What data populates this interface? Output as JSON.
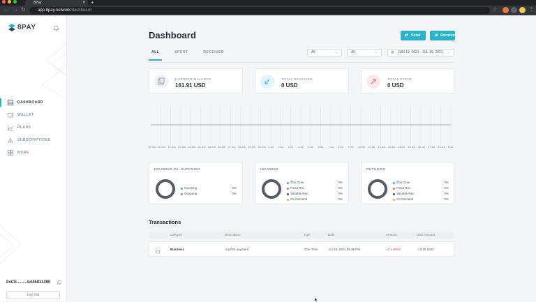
{
  "browser": {
    "tab_title": "8Pay",
    "url_host": "app.8pay.network",
    "url_path": "/dashboard",
    "close_glyph": "×",
    "newtab_glyph": "+"
  },
  "sidebar": {
    "brand": "8PAY",
    "items": [
      {
        "label": "DASHBOARD",
        "icon": "chart-icon"
      },
      {
        "label": "WALLET",
        "icon": "wallet-icon"
      },
      {
        "label": "PLANS",
        "icon": "plans-icon"
      },
      {
        "label": "SUBSCRIPTIONS",
        "icon": "subscriptions-icon"
      },
      {
        "label": "MORE",
        "icon": "grid-icon"
      }
    ],
    "wallet_address": "0xCE.........b445811490",
    "logout_label": "Log Out"
  },
  "header": {
    "title": "Dashboard",
    "send_label": "Send",
    "receive_label": "Receive"
  },
  "tabs": [
    "ALL",
    "SPENT",
    "RECEIVED"
  ],
  "filters": {
    "filter1": "All",
    "filter2": "All",
    "date_range": "JUN 19, 2021 - JUL 19, 2021"
  },
  "balances": [
    {
      "label": "CURRENT BALANCE",
      "value": "161.91 USD"
    },
    {
      "label": "TOTAL RECEIVED",
      "value": "0 USD"
    },
    {
      "label": "TOTAL SPENT",
      "value": "0 USD"
    }
  ],
  "chart_data": {
    "type": "line",
    "x": [
      "19 Jun",
      "20 Jun",
      "21 Jun",
      "22 Jun",
      "23 Jun",
      "24 Jun",
      "25 Jun",
      "26 Jun",
      "27 Jun",
      "28 Jun",
      "29 Jun",
      "30 Jun",
      "1 Jul",
      "2 Jul",
      "3 Jul",
      "4 Jul",
      "5 Jul",
      "6 Jul",
      "7 Jul",
      "8 Jul",
      "9 Jul",
      "10 Jul",
      "11 Jul",
      "12 Jul",
      "13 Jul",
      "14 Jul",
      "15 Jul",
      "16 Jul",
      "17 Jul",
      "18 Jul",
      "Now"
    ],
    "series": [
      {
        "values": [
          0,
          0,
          0,
          0,
          0,
          0,
          0,
          0,
          0,
          0,
          0,
          0,
          0,
          0,
          0,
          0,
          0,
          0,
          0,
          0,
          0,
          0,
          0,
          0,
          0,
          0,
          0,
          0,
          0,
          0,
          0
        ]
      }
    ],
    "grid": true
  },
  "summaries": [
    {
      "title": "INCOMING VS. OUTGOING",
      "legend": [
        {
          "label": "Incoming",
          "value": "0%",
          "color": "#2ab3c6"
        },
        {
          "label": "Outgoing",
          "value": "0%",
          "color": "#e06a7d"
        }
      ]
    },
    {
      "title": "INCOMING",
      "legend": [
        {
          "label": "One Time",
          "value": "0%",
          "color": "#2ab3c6"
        },
        {
          "label": "Fixed Rec.",
          "value": "0%",
          "color": "#e06a7d"
        },
        {
          "label": "Variable Rec.",
          "value": "0%",
          "color": "#3a4f8c"
        },
        {
          "label": "On Demand",
          "value": "0%",
          "color": "#f2a84a"
        }
      ]
    },
    {
      "title": "OUTGOING",
      "legend": [
        {
          "label": "One Time",
          "value": "0%",
          "color": "#2ab3c6"
        },
        {
          "label": "Fixed Rec.",
          "value": "0%",
          "color": "#e06a7d"
        },
        {
          "label": "Variable Rec.",
          "value": "0%",
          "color": "#3a4f8c"
        },
        {
          "label": "On Demand",
          "value": "0%",
          "color": "#f2a84a"
        }
      ]
    }
  ],
  "transactions": {
    "title": "Transactions",
    "headers": [
      "Category",
      "Description",
      "Type",
      "Date",
      "Amount",
      "USD Amount"
    ],
    "rows": [
      {
        "category": "Business",
        "description": "my first payment",
        "type": "One Time",
        "date": "Jul 19, 2021 09:38 PM",
        "amount": "-0.1 8PAY",
        "usd": "≈ 0.00 USD"
      }
    ]
  },
  "colors": {
    "accent": "#2ab3c6",
    "negative": "#e0394f"
  }
}
